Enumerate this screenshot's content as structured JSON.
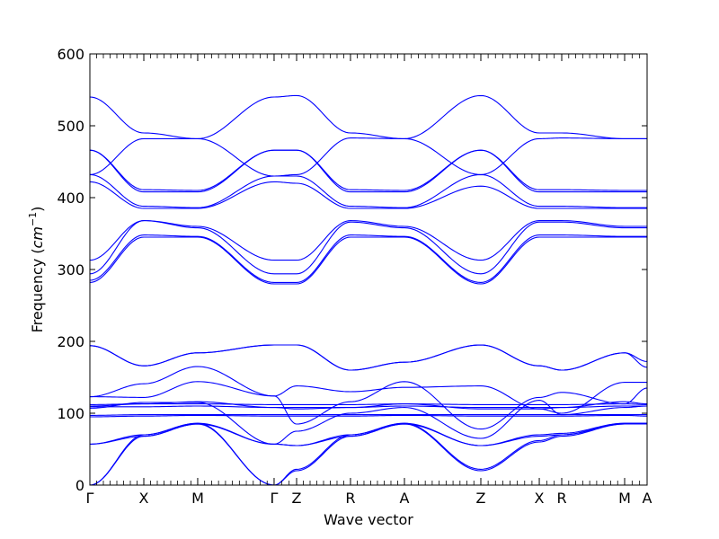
{
  "chart_data": {
    "type": "line",
    "xlabel": "Wave vector",
    "ylabel_prefix": "Frequency (",
    "ylabel_unit_base": "cm",
    "ylabel_unit_exp": "−1",
    "ylabel_suffix": ")",
    "ylim": [
      0,
      600
    ],
    "yticks": [
      0,
      100,
      200,
      300,
      400,
      500,
      600
    ],
    "xlim": [
      0,
      1
    ],
    "grid": false,
    "line_color": "#0000ff",
    "high_symmetry_points": [
      {
        "label": "Γ",
        "x": 0.0
      },
      {
        "label": "X",
        "x": 0.0968
      },
      {
        "label": "M",
        "x": 0.1935
      },
      {
        "label": "Γ",
        "x": 0.3306
      },
      {
        "label": "Z",
        "x": 0.371
      },
      {
        "label": "R",
        "x": 0.4677
      },
      {
        "label": "A",
        "x": 0.5645
      },
      {
        "label": "Z",
        "x": 0.7016
      },
      {
        "label": "X",
        "x": 0.8065
      },
      {
        "label": "R",
        "x": 0.8468
      },
      {
        "label": "M",
        "x": 0.9597
      },
      {
        "label": "A",
        "x": 1.0
      }
    ],
    "segment_ends": [
      0,
      0.0968,
      0.1935,
      0.3306,
      0.371,
      0.4677,
      0.5645,
      0.7016,
      0.8065,
      0.8468,
      0.9597,
      1.0
    ],
    "series": [
      {
        "values": [
          0,
          68,
          85,
          0,
          20,
          68,
          85,
          20,
          60,
          68,
          85,
          85
        ]
      },
      {
        "values": [
          0,
          70,
          86,
          0,
          22,
          70,
          86,
          22,
          62,
          70,
          86,
          86
        ]
      },
      {
        "values": [
          57,
          68,
          85,
          57,
          55,
          68,
          85,
          55,
          68,
          70,
          85,
          85
        ]
      },
      {
        "values": [
          57,
          70,
          86,
          57,
          55,
          70,
          86,
          55,
          70,
          72,
          86,
          86
        ]
      },
      {
        "values": [
          95,
          96,
          97,
          96,
          96,
          96,
          97,
          96,
          96,
          96,
          97,
          96
        ]
      },
      {
        "values": [
          97,
          98,
          98,
          98,
          98,
          98,
          98,
          98,
          98,
          98,
          98,
          98
        ]
      },
      {
        "values": [
          107,
          115,
          115,
          57,
          75,
          100,
          108,
          65,
          118,
          98,
          108,
          110
        ]
      },
      {
        "values": [
          109,
          109,
          110,
          108,
          108,
          108,
          110,
          108,
          108,
          108,
          110,
          110
        ]
      },
      {
        "values": [
          110,
          113,
          116,
          108,
          106,
          108,
          113,
          106,
          106,
          108,
          116,
          113
        ]
      },
      {
        "values": [
          112,
          113,
          113,
          112,
          112,
          112,
          113,
          112,
          112,
          112,
          113,
          112
        ]
      },
      {
        "values": [
          123,
          122,
          144,
          124,
          85,
          116,
          144,
          78,
          122,
          129,
          113,
          135
        ]
      },
      {
        "values": [
          123,
          141,
          165,
          124,
          138,
          130,
          136,
          138,
          106,
          100,
          143,
          143
        ]
      },
      {
        "values": [
          194,
          166,
          184,
          195,
          195,
          160,
          171,
          195,
          166,
          160,
          184,
          172
        ]
      },
      {
        "values": [
          194,
          166,
          184,
          195,
          195,
          160,
          171,
          195,
          166,
          160,
          184,
          164
        ]
      },
      {
        "values": [
          282,
          345,
          345,
          280,
          280,
          345,
          345,
          280,
          345,
          345,
          345,
          345
        ]
      },
      {
        "values": [
          285,
          348,
          346,
          282,
          282,
          348,
          346,
          282,
          348,
          348,
          346,
          346
        ]
      },
      {
        "values": [
          294,
          368,
          358,
          294,
          294,
          366,
          358,
          294,
          366,
          366,
          358,
          358
        ]
      },
      {
        "values": [
          313,
          368,
          360,
          313,
          313,
          368,
          360,
          313,
          368,
          368,
          360,
          360
        ]
      },
      {
        "values": [
          422,
          385,
          385,
          422,
          420,
          385,
          385,
          416,
          385,
          385,
          385,
          385
        ]
      },
      {
        "values": [
          432,
          388,
          386,
          430,
          430,
          388,
          386,
          432,
          388,
          388,
          386,
          386
        ]
      },
      {
        "values": [
          466,
          408,
          408,
          466,
          466,
          408,
          408,
          466,
          408,
          408,
          408,
          408
        ]
      },
      {
        "values": [
          466,
          411,
          410,
          466,
          466,
          411,
          410,
          466,
          411,
          411,
          410,
          410
        ]
      },
      {
        "values": [
          432,
          482,
          482,
          430,
          432,
          483,
          482,
          432,
          482,
          483,
          482,
          482
        ]
      },
      {
        "values": [
          540,
          490,
          482,
          540,
          542,
          490,
          482,
          542,
          490,
          490,
          482,
          482
        ]
      }
    ]
  }
}
